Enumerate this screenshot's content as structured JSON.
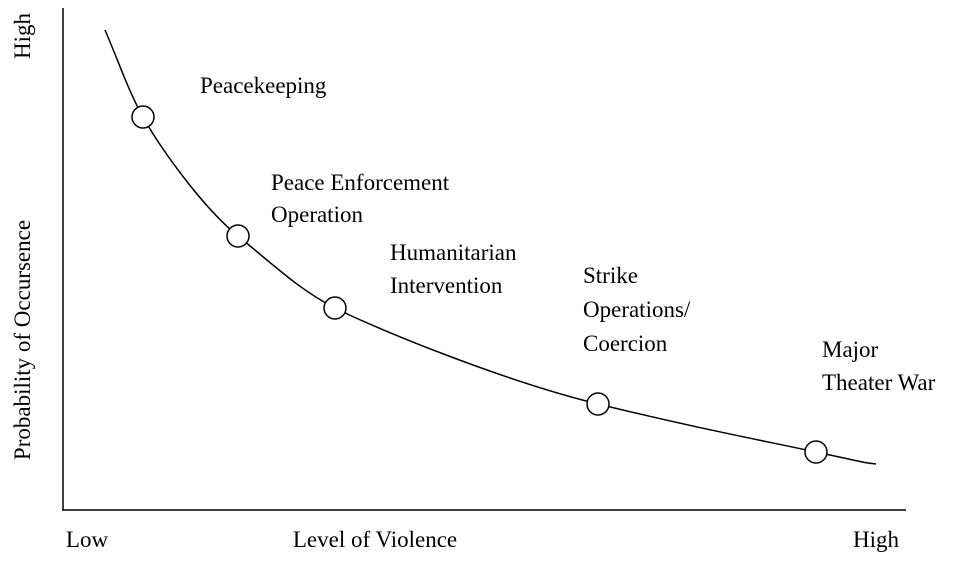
{
  "y_axis": {
    "label": "Probability of Occursence",
    "high": "High"
  },
  "x_axis": {
    "label": "Level of Violence",
    "low": "Low",
    "high": "High"
  },
  "nodes": [
    {
      "lines": [
        "Peacekeeping"
      ]
    },
    {
      "lines": [
        "Peace Enforcement",
        "Operation"
      ]
    },
    {
      "lines": [
        "Humanitarian",
        "Intervention"
      ]
    },
    {
      "lines": [
        "Strike",
        "Operations/",
        "Coercion"
      ]
    },
    {
      "lines": [
        "Major",
        "Theater War"
      ]
    }
  ]
}
